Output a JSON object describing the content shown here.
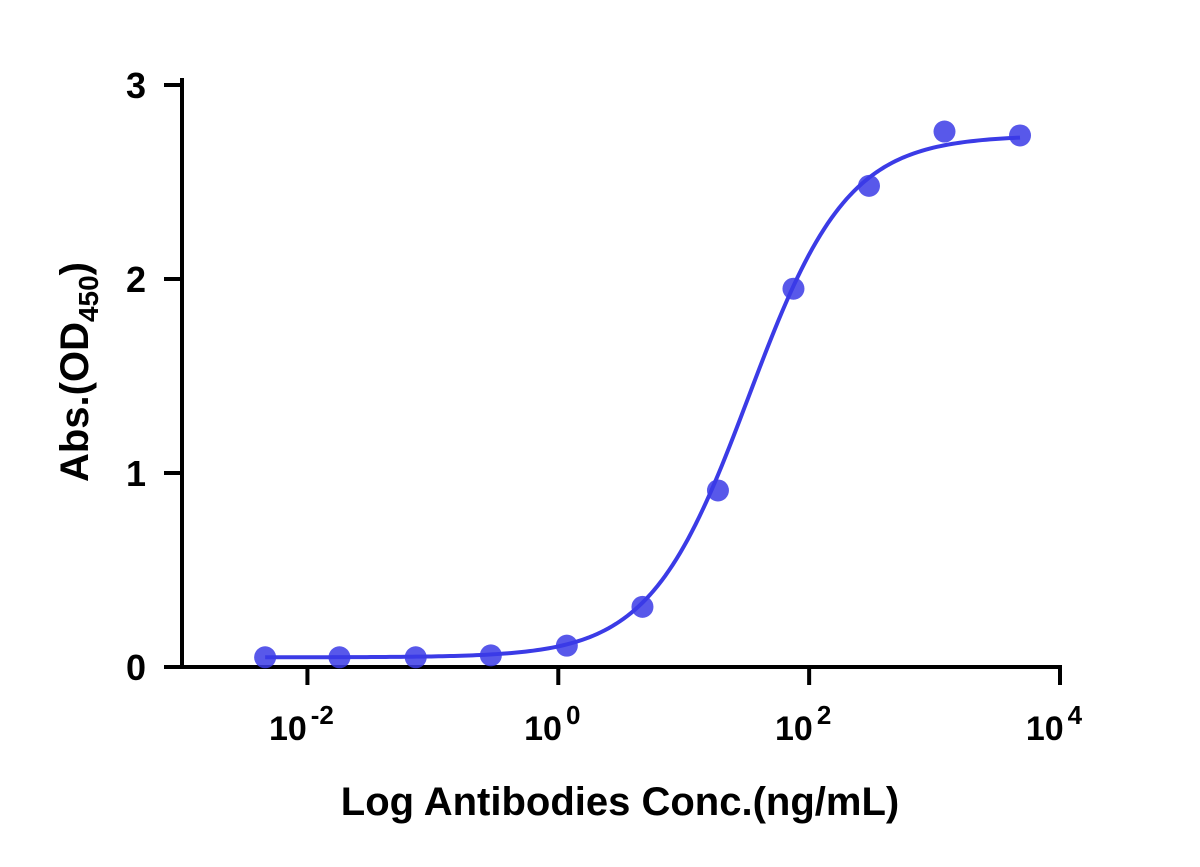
{
  "chart_data": {
    "type": "scatter",
    "x_label": "Log Antibodies Conc.(ng/mL)",
    "y_label": {
      "text": "Abs.(OD",
      "subscript": "450",
      "suffix": ")"
    },
    "x": [
      0.0046,
      0.018,
      0.073,
      0.29,
      1.17,
      4.69,
      18.75,
      75,
      300,
      1200,
      4800
    ],
    "series": [
      {
        "color": "#3b3be6",
        "values": [
          0.05,
          0.05,
          0.05,
          0.06,
          0.11,
          0.31,
          0.91,
          1.95,
          2.48,
          2.76,
          2.74
        ]
      }
    ],
    "fit": {
      "model": "4PL",
      "bottom": 0.05,
      "top": 2.74,
      "ec50": 33,
      "hill": 1.1
    },
    "xlog": true,
    "xlim": [
      0.001,
      10000
    ],
    "xticks": [
      {
        "value": 0.01,
        "label": "10",
        "exponent": "-2"
      },
      {
        "value": 1,
        "label": "10",
        "exponent": "0"
      },
      {
        "value": 100,
        "label": "10",
        "exponent": "2"
      },
      {
        "value": 10000,
        "label": "10",
        "exponent": "4"
      }
    ],
    "ylim": [
      0,
      3
    ],
    "yticks": [
      0,
      1,
      2,
      3
    ]
  }
}
